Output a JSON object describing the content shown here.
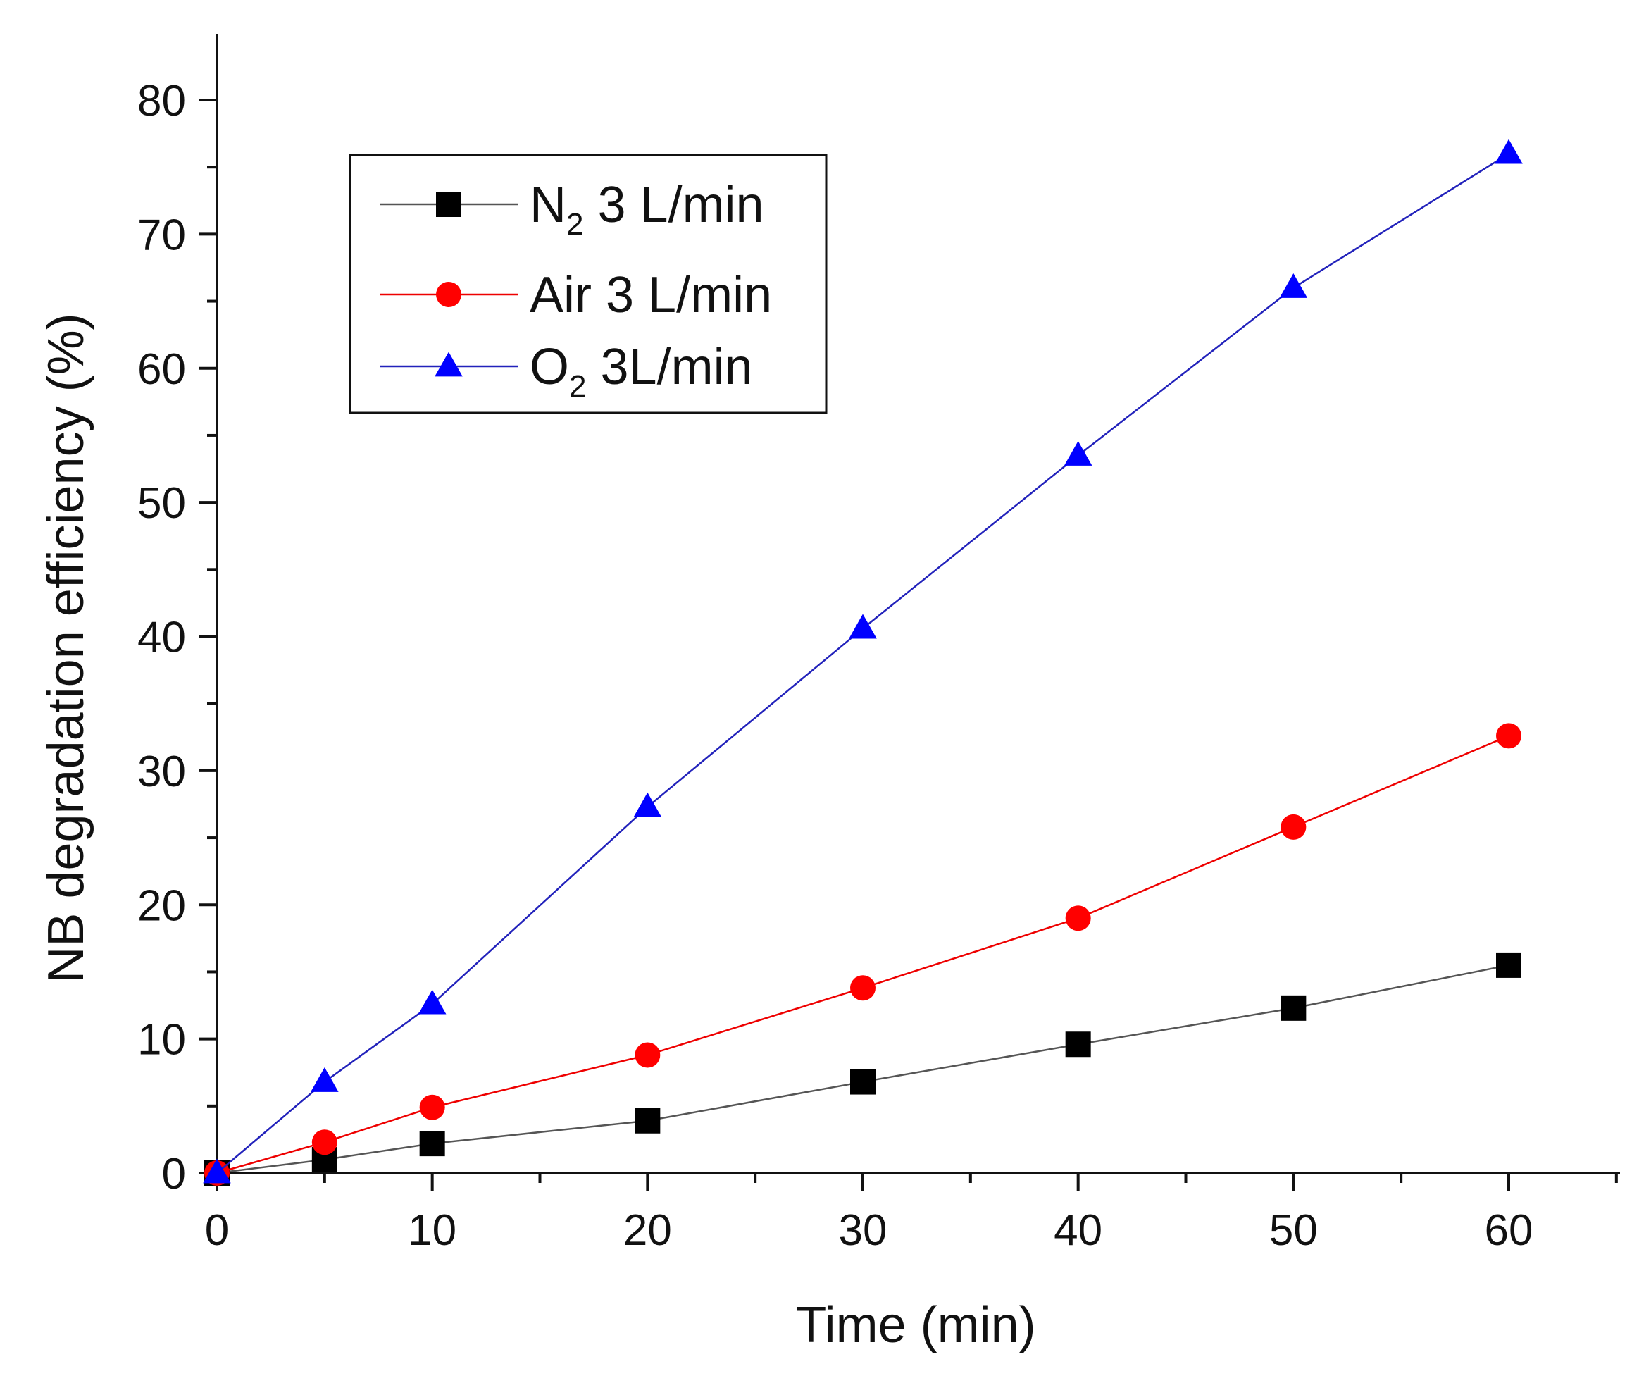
{
  "chart_data": {
    "type": "line",
    "title": "",
    "xlabel": "Time (min)",
    "ylabel": "NB degradation efficiency (%)",
    "xlim": [
      0,
      65
    ],
    "ylim": [
      0,
      85
    ],
    "x_ticks": [
      0,
      10,
      20,
      30,
      40,
      50,
      60
    ],
    "y_ticks": [
      0,
      10,
      20,
      30,
      40,
      50,
      60,
      70,
      80
    ],
    "grid": false,
    "legend_position": "top-left",
    "x": [
      0,
      5,
      10,
      20,
      30,
      40,
      50,
      60
    ],
    "series": [
      {
        "name": "N2 3 L/min",
        "legend_main": "N",
        "legend_sub": "2",
        "legend_rest": " 3 L/min",
        "marker": "square",
        "line_color": "#555555",
        "marker_color": "#000000",
        "values": [
          0,
          1.0,
          2.2,
          3.9,
          6.8,
          9.6,
          12.3,
          15.5
        ]
      },
      {
        "name": "Air 3 L/min",
        "legend_main": "Air 3 L/min",
        "legend_sub": "",
        "legend_rest": "",
        "marker": "circle",
        "line_color": "#ee0000",
        "marker_color": "#ff0000",
        "values": [
          0,
          2.3,
          4.9,
          8.8,
          13.8,
          19.0,
          25.8,
          32.6
        ]
      },
      {
        "name": "O2 3L/min",
        "legend_main": "O",
        "legend_sub": "2",
        "legend_rest": " 3L/min",
        "marker": "triangle",
        "line_color": "#2222bb",
        "marker_color": "#0000ff",
        "values": [
          0,
          6.8,
          12.6,
          27.3,
          40.6,
          53.5,
          66.0,
          76.0
        ]
      }
    ]
  }
}
